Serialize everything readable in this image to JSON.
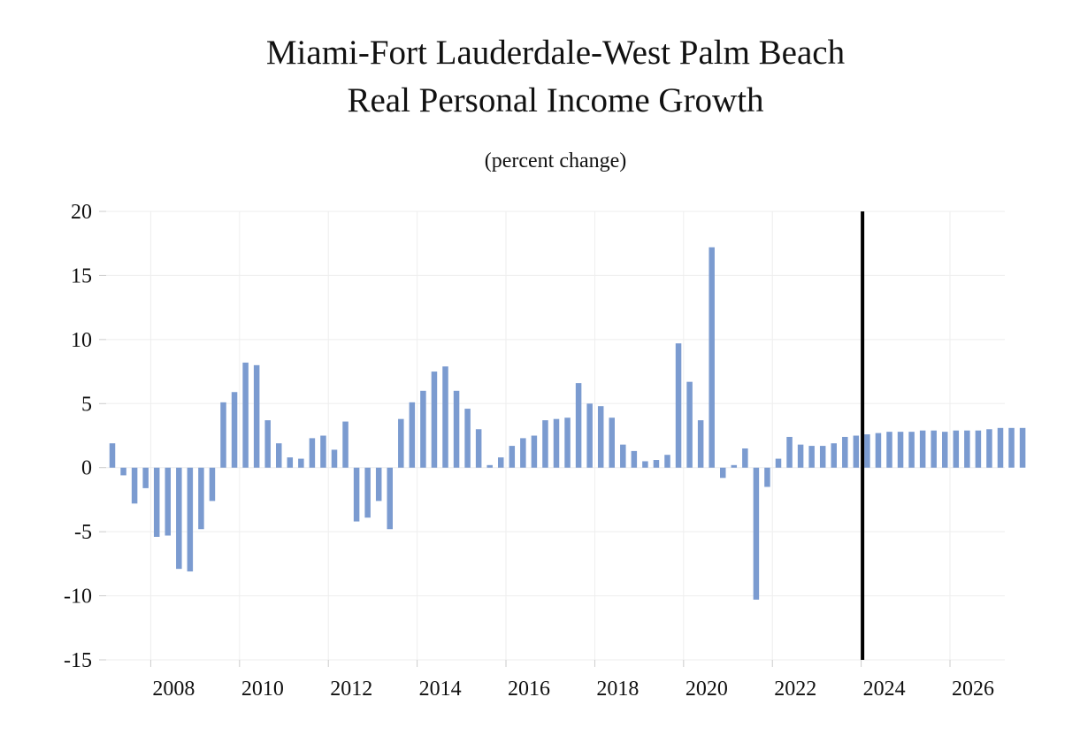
{
  "chart_data": {
    "type": "bar",
    "title": "Miami-Fort Lauderdale-West Palm Beach",
    "subtitle": "Real Personal Income Growth",
    "units_note": "(percent change)",
    "xlabel": "",
    "ylabel": "",
    "ylim": [
      -15,
      20
    ],
    "yticks": [
      "20",
      "15",
      "10",
      "5",
      "0",
      "-5",
      "-10",
      "-15"
    ],
    "ytick_values": [
      20,
      15,
      10,
      5,
      0,
      -5,
      -10,
      -15
    ],
    "xticks": [
      "2008",
      "2010",
      "2012",
      "2014",
      "2016",
      "2018",
      "2020",
      "2022",
      "2024",
      "2026"
    ],
    "grid": true,
    "forecast_start": "2024 Q1",
    "series": [
      {
        "name": "Real Personal Income Growth",
        "color": "#7b9bd0",
        "start": "2007 Q1",
        "frequency": "quarterly",
        "values": [
          1.9,
          -0.6,
          -2.8,
          -1.6,
          -5.4,
          -5.3,
          -7.9,
          -8.1,
          -4.8,
          -2.6,
          5.1,
          5.9,
          8.2,
          8.0,
          3.7,
          1.9,
          0.8,
          0.7,
          2.3,
          2.5,
          1.4,
          3.6,
          -4.2,
          -3.9,
          -2.6,
          -4.8,
          3.8,
          5.1,
          6.0,
          7.5,
          7.9,
          6.0,
          4.6,
          3.0,
          0.2,
          0.8,
          1.7,
          2.3,
          2.5,
          3.7,
          3.8,
          3.9,
          6.6,
          5.0,
          4.8,
          3.9,
          1.8,
          1.3,
          0.5,
          0.6,
          1.0,
          9.7,
          6.7,
          3.7,
          17.2,
          -0.8,
          0.2,
          1.5,
          -10.3,
          -1.5,
          0.7,
          2.4,
          1.8,
          1.7,
          1.7,
          1.9,
          2.4,
          2.5,
          2.6,
          2.7,
          2.8,
          2.8,
          2.8,
          2.9,
          2.9,
          2.8,
          2.9,
          2.9,
          2.9,
          3.0,
          3.1,
          3.1,
          3.1
        ]
      }
    ]
  },
  "colors": {
    "bar": "#7b9bd0",
    "forecast_line": "#000000",
    "grid": "#eeeeee",
    "text": "#111111"
  }
}
